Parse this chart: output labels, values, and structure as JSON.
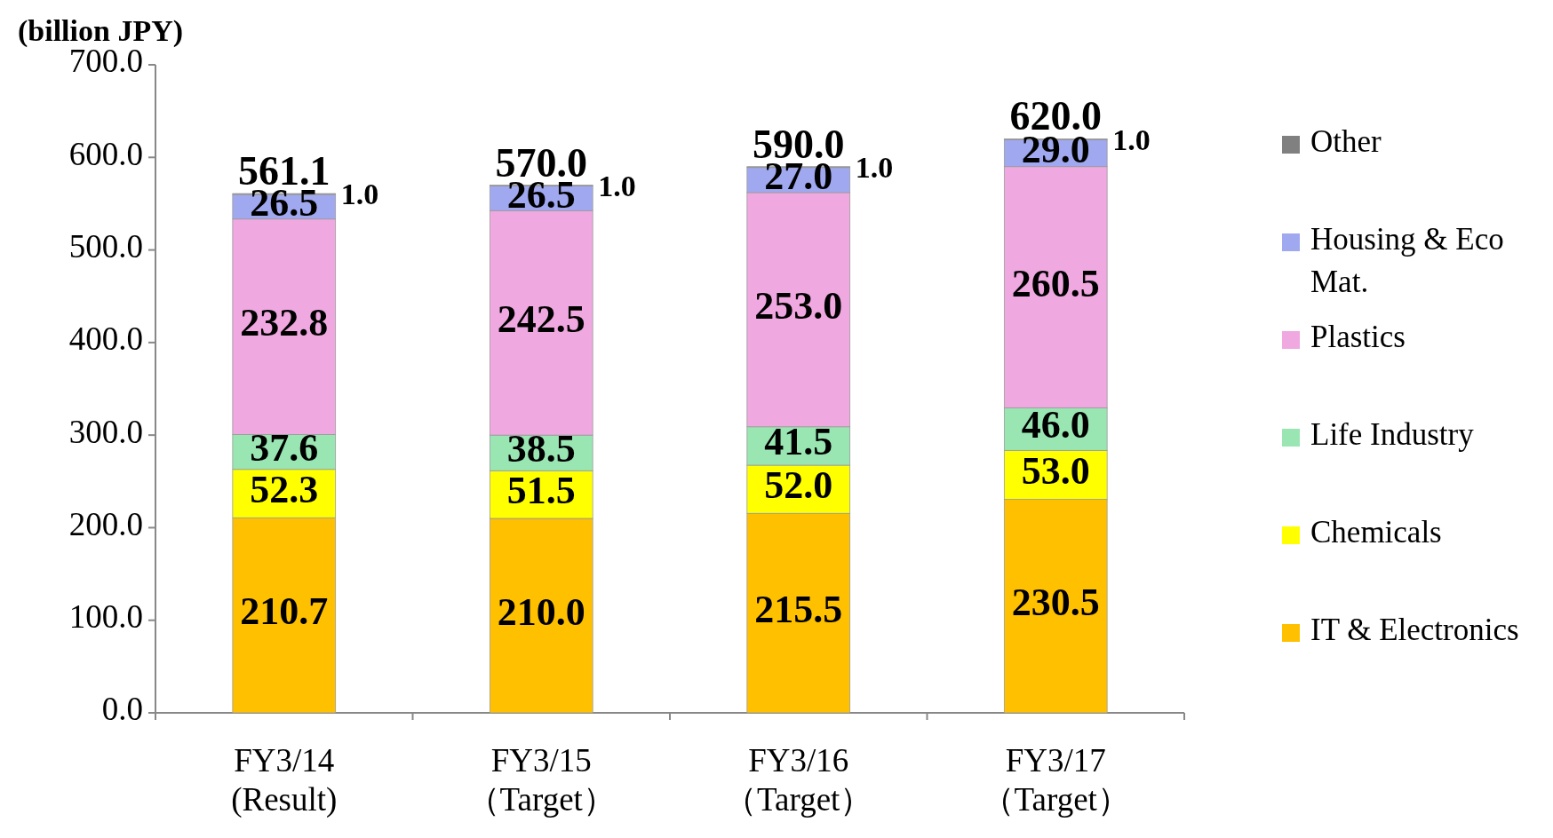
{
  "chart_data": {
    "type": "bar",
    "stacked": true,
    "ylabel": "(billion JPY)",
    "categories": [
      "FY3/14\n(Result)",
      "FY3/15\n（Target）",
      "FY3/16\n（Target）",
      "FY3/17\n（Target）"
    ],
    "series": [
      {
        "name": "IT & Electronics",
        "color": "#ffc000",
        "values": [
          210.7,
          210.0,
          215.5,
          230.5
        ],
        "value_labels": [
          "210.7",
          "210.0",
          "215.5",
          "230.5"
        ]
      },
      {
        "name": "Chemicals",
        "color": "#ffff00",
        "values": [
          52.3,
          51.5,
          52.0,
          53.0
        ],
        "value_labels": [
          "52.3",
          "51.5",
          "52.0",
          "53.0"
        ]
      },
      {
        "name": "Life Industry",
        "color": "#99e6b3",
        "values": [
          37.6,
          38.5,
          41.5,
          46.0
        ],
        "value_labels": [
          "37.6",
          "38.5",
          "41.5",
          "46.0"
        ]
      },
      {
        "name": "Plastics",
        "color": "#f0a8e0",
        "values": [
          232.8,
          242.5,
          253.0,
          260.5
        ],
        "value_labels": [
          "232.8",
          "242.5",
          "253.0",
          "260.5"
        ]
      },
      {
        "name": "Housing & Eco Mat.",
        "color": "#a0a8f0",
        "values": [
          26.5,
          26.5,
          27.0,
          29.0
        ],
        "value_labels": [
          "26.5",
          "26.5",
          "27.0",
          "29.0"
        ]
      },
      {
        "name": "Other",
        "color": "#808080",
        "values": [
          1.0,
          1.0,
          1.0,
          1.0
        ],
        "value_labels": [
          "1.0",
          "1.0",
          "1.0",
          "1.0"
        ]
      }
    ],
    "totals": [
      "561.1",
      "570.0",
      "590.0",
      "620.0"
    ],
    "ylim": [
      0,
      700
    ],
    "yticks": [
      {
        "value": 0,
        "label": "0.0"
      },
      {
        "value": 100,
        "label": "100.0"
      },
      {
        "value": 200,
        "label": "200.0"
      },
      {
        "value": 300,
        "label": "300.0"
      },
      {
        "value": 400,
        "label": "400.0"
      },
      {
        "value": 500,
        "label": "500.0"
      },
      {
        "value": 600,
        "label": "600.0"
      },
      {
        "value": 700,
        "label": "700.0"
      }
    ],
    "legend": "right"
  }
}
